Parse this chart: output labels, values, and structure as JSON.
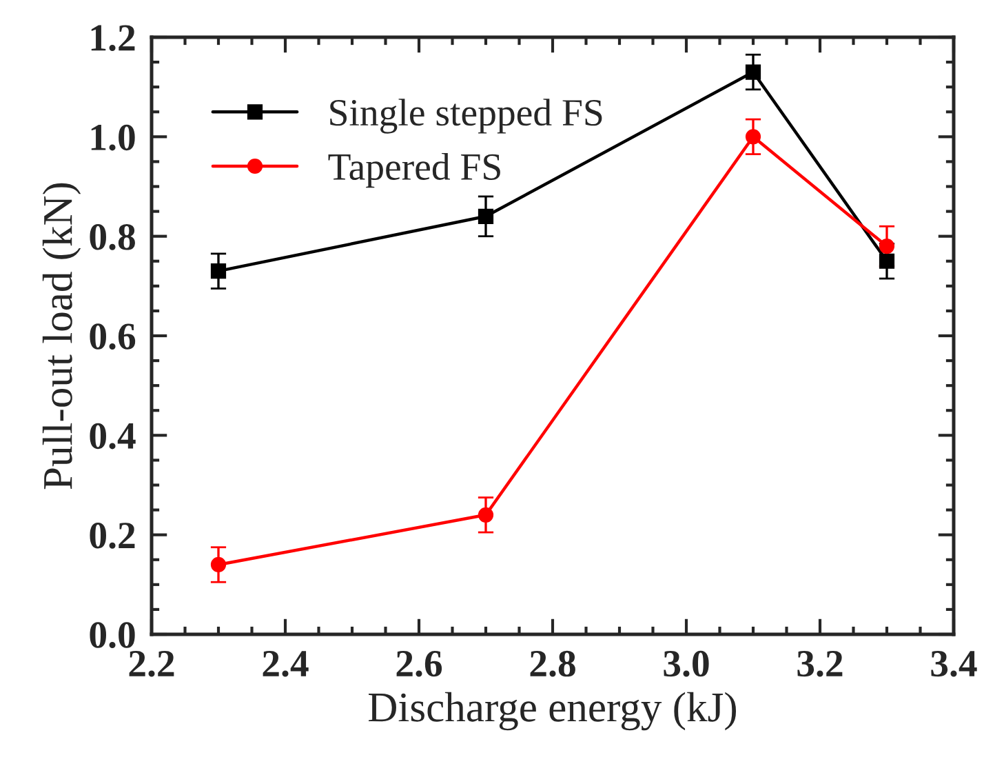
{
  "chart_data": {
    "type": "line",
    "xlabel": "Discharge energy (kJ)",
    "ylabel": "Pull-out load (kN)",
    "x": [
      2.3,
      2.7,
      3.1,
      3.3
    ],
    "series": [
      {
        "name": "Single stepped FS",
        "color": "#000000",
        "marker": "square",
        "values": [
          0.73,
          0.84,
          1.13,
          0.75
        ],
        "errors": [
          0.035,
          0.04,
          0.035,
          0.035
        ]
      },
      {
        "name": "Tapered FS",
        "color": "#ff0000",
        "marker": "circle",
        "values": [
          0.14,
          0.24,
          1.0,
          0.78
        ],
        "errors": [
          0.035,
          0.035,
          0.035,
          0.04
        ]
      }
    ],
    "xlim": [
      2.2,
      3.4
    ],
    "xticks": [
      2.2,
      2.4,
      2.6,
      2.8,
      {
        "value": 3,
        "label": "3.0"
      },
      3.2,
      3.4
    ],
    "ylim": [
      0,
      1.2
    ],
    "yticks": [
      {
        "value": 0,
        "label": "0.0"
      },
      0.2,
      0.4,
      0.6,
      0.8,
      {
        "value": 1,
        "label": "1.0"
      },
      1.2
    ],
    "grid": false,
    "legend": "top left",
    "line_style": "solid"
  }
}
